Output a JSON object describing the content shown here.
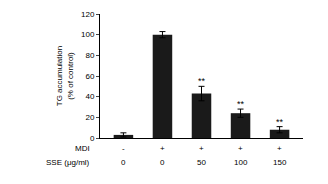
{
  "chart_data": {
    "type": "bar",
    "y_label": "TG accumulation\n(% of control)",
    "category_rows": [
      "MDI",
      "SSE (μg/ml)"
    ],
    "categories": [
      [
        "-",
        "0"
      ],
      [
        "+",
        "0"
      ],
      [
        "+",
        "50"
      ],
      [
        "+",
        "100"
      ],
      [
        "+",
        "150"
      ]
    ],
    "values": [
      3,
      100,
      43,
      24,
      8
    ],
    "errors": [
      2,
      3,
      7,
      4,
      3
    ],
    "significance": [
      null,
      null,
      "**",
      "**",
      "**"
    ],
    "color": "#1a1a1a",
    "ylim": [
      0,
      120
    ],
    "yticks": [
      0,
      20,
      40,
      60,
      80,
      100,
      120
    ],
    "grid": false
  }
}
